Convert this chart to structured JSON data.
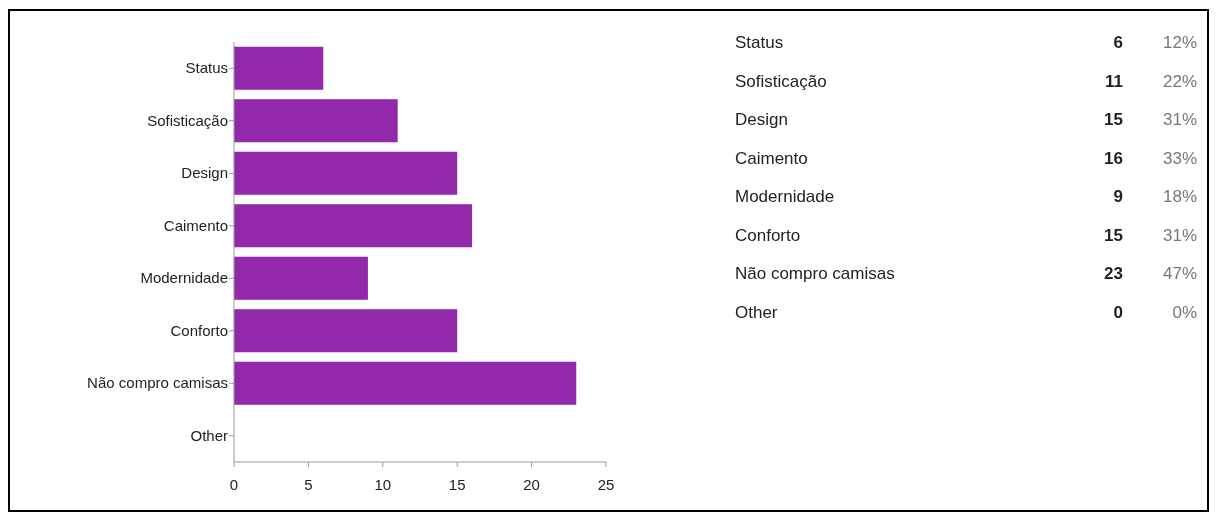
{
  "chart_data": [
    {
      "type": "bar",
      "orientation": "horizontal",
      "categories": [
        "Status",
        "Sofisticação",
        "Design",
        "Caimento",
        "Modernidade",
        "Conforto",
        "Não compro camisas",
        "Other"
      ],
      "values": [
        6,
        11,
        15,
        16,
        9,
        15,
        23,
        0
      ],
      "color": "#9228aa",
      "xlim": [
        0,
        25
      ],
      "xticks": [
        0,
        5,
        10,
        15,
        20,
        25
      ]
    },
    {
      "type": "other",
      "categories": [
        "Status",
        "Sofisticação",
        "Design",
        "Caimento",
        "Modernidade",
        "Conforto",
        "Não compro camisas",
        "Other"
      ],
      "series": [
        {
          "values": [
            6,
            11,
            15,
            16,
            9,
            15,
            23,
            0
          ],
          "color": "#222222"
        },
        {
          "values": [
            12,
            22,
            31,
            33,
            18,
            31,
            47,
            0
          ],
          "color": "#777777",
          "value_labels": [
            "12%",
            "22%",
            "31%",
            "33%",
            "18%",
            "31%",
            "47%",
            "0%"
          ]
        }
      ],
      "data_labels": true
    }
  ]
}
